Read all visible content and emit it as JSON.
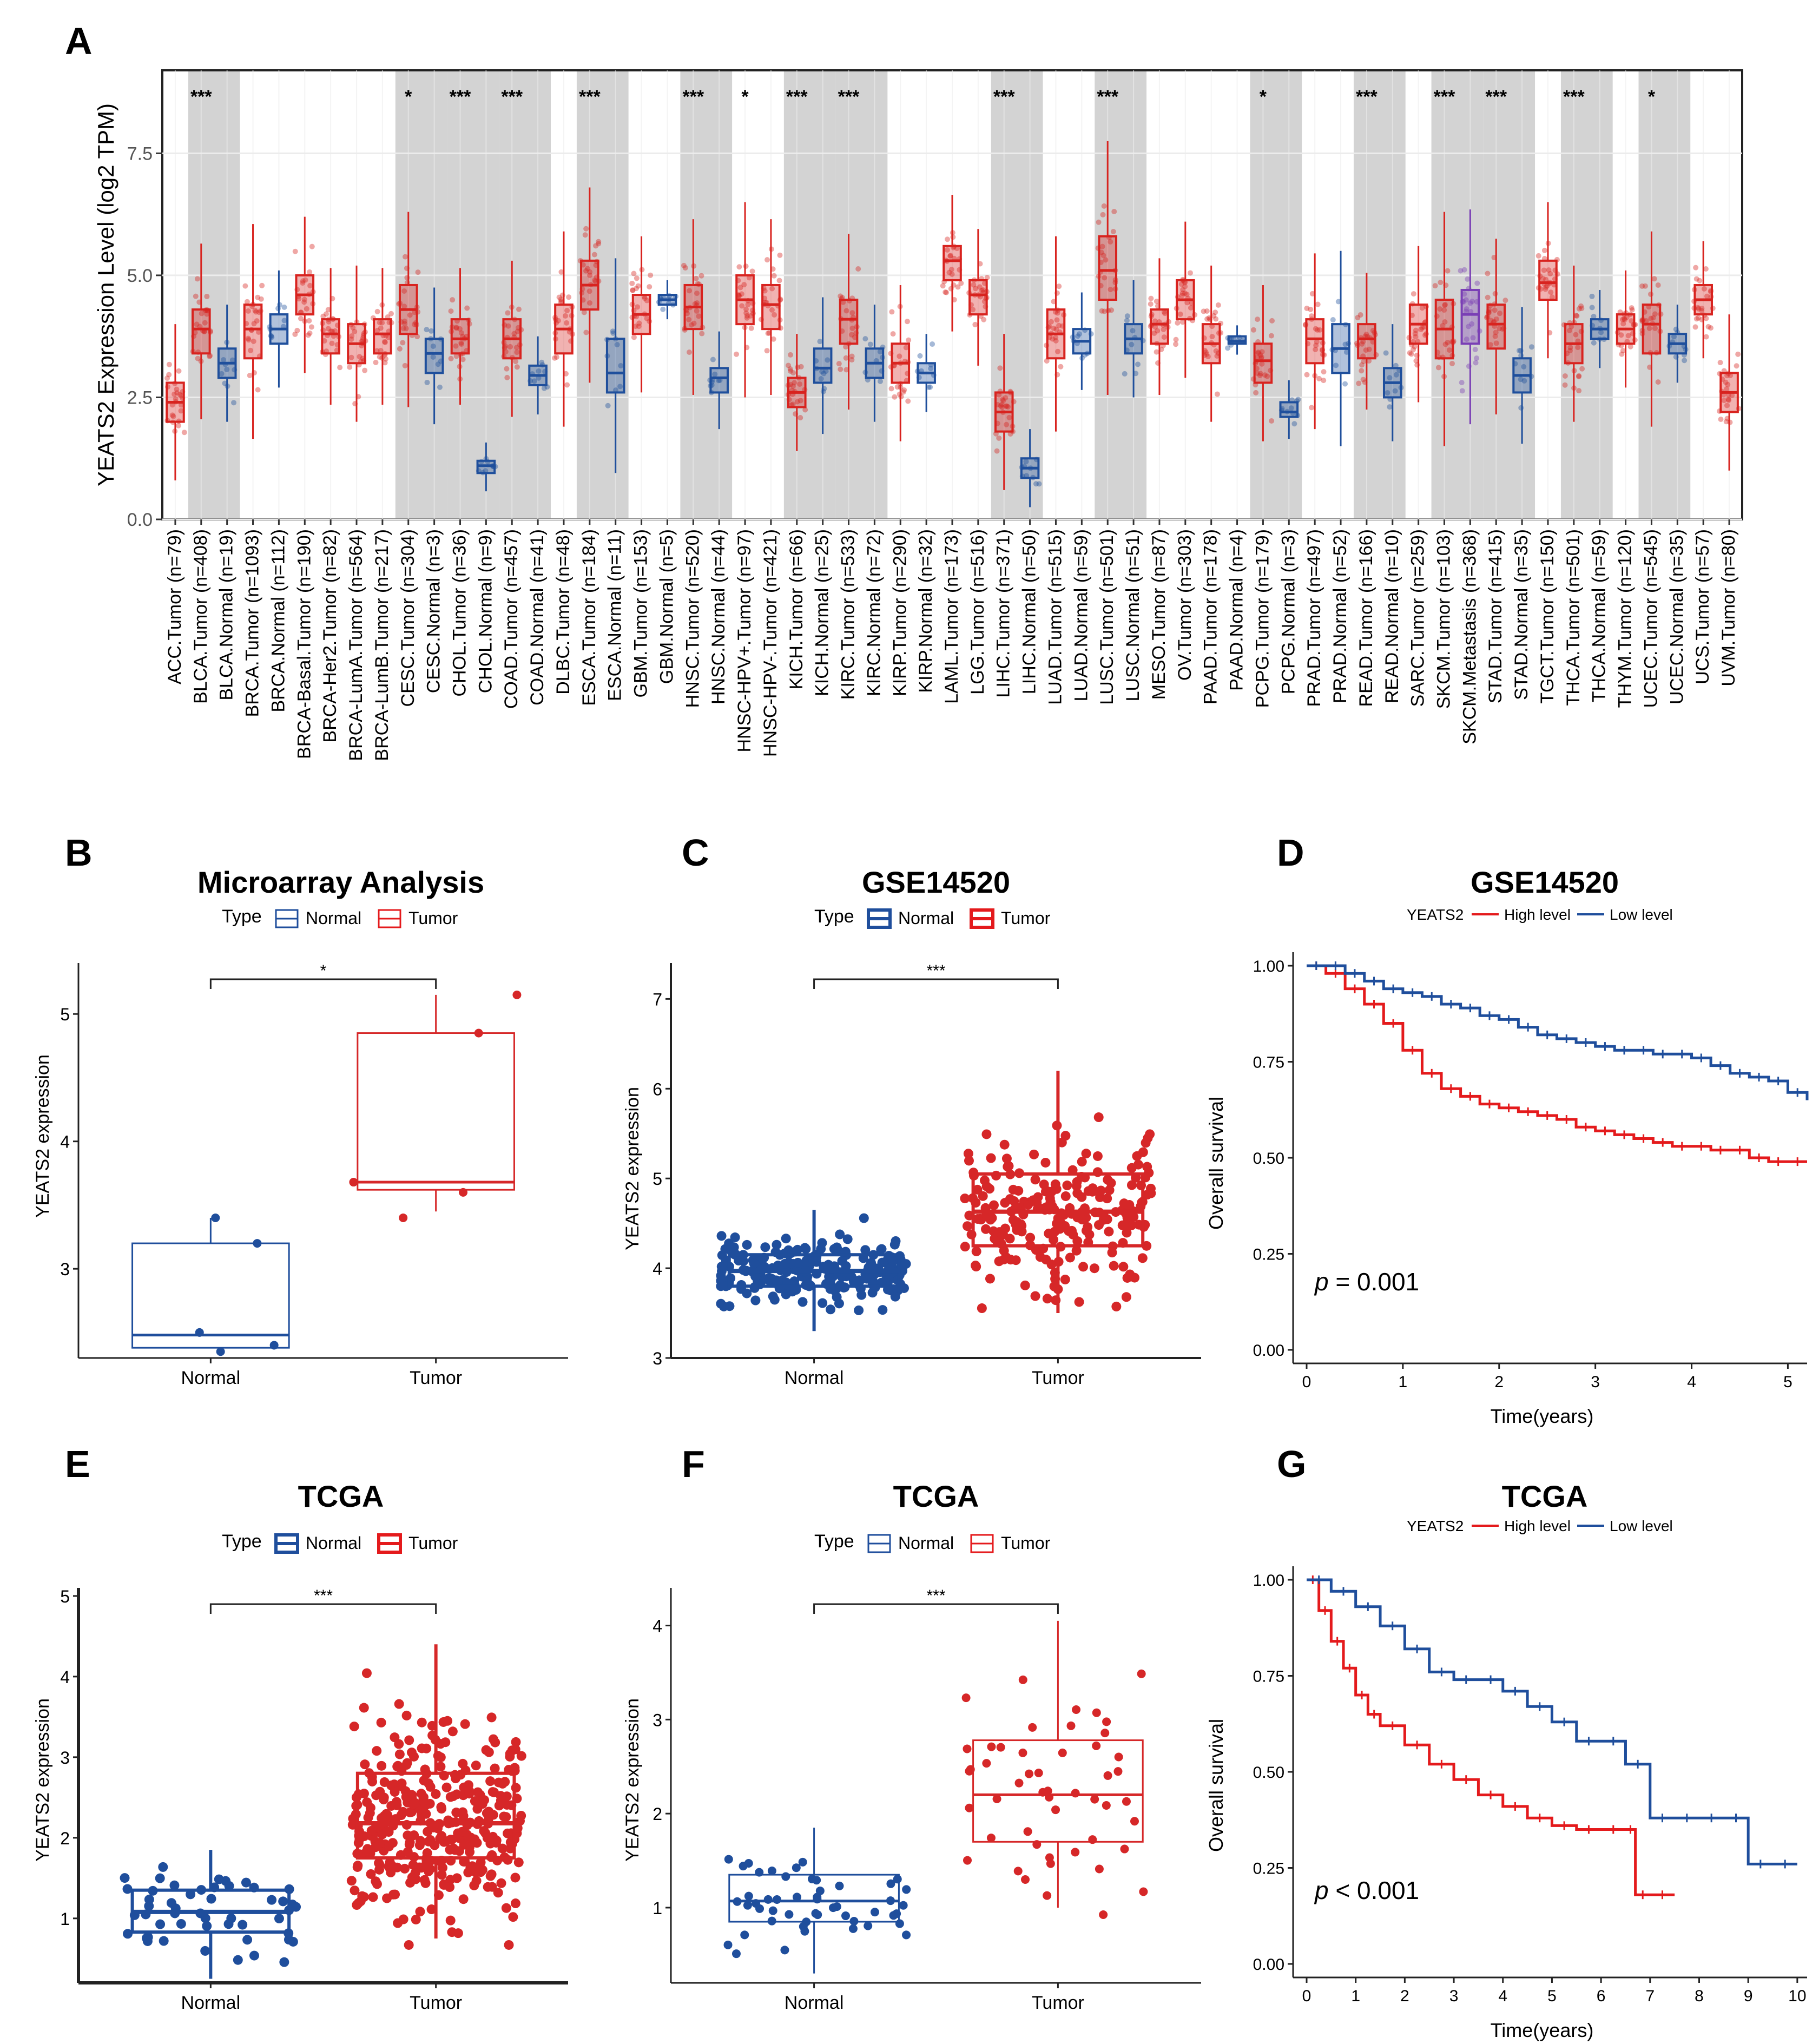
{
  "panels": {
    "A": {
      "letter": "A",
      "ylabel": "YEATS2 Expression Level (log2 TPM)",
      "yticks": [
        "0.0",
        "2.5",
        "5.0",
        "7.5"
      ]
    },
    "B": {
      "letter": "B",
      "title": "Microarray Analysis",
      "ylabel": "YEATS2 expression",
      "xticks": [
        "Normal",
        "Tumor"
      ],
      "legend_title": "Type",
      "legend_items": [
        "Normal",
        "Tumor"
      ],
      "significance": "*",
      "yticks": [
        "3",
        "4",
        "5"
      ]
    },
    "C": {
      "letter": "C",
      "title": "GSE14520",
      "ylabel": "YEATS2 expression",
      "xticks": [
        "Normal",
        "Tumor"
      ],
      "legend_title": "Type",
      "legend_items": [
        "Normal",
        "Tumor"
      ],
      "significance": "***",
      "yticks": [
        "3",
        "4",
        "5",
        "6",
        "7"
      ]
    },
    "D": {
      "letter": "D",
      "title": "GSE14520",
      "ylabel": "Overall survival",
      "xlabel": "Time(years)",
      "legend_title": "YEATS2",
      "legend_items": [
        "High level",
        "Low level"
      ],
      "pvalue_symbol": "p",
      "pvalue_text": "= 0.001",
      "yticks": [
        "0.00",
        "0.25",
        "0.50",
        "0.75",
        "1.00"
      ],
      "xticks": [
        "0",
        "1",
        "2",
        "3",
        "4",
        "5"
      ]
    },
    "E": {
      "letter": "E",
      "title": "TCGA",
      "ylabel": "YEATS2 expression",
      "xticks": [
        "Normal",
        "Tumor"
      ],
      "legend_title": "Type",
      "legend_items": [
        "Normal",
        "Tumor"
      ],
      "significance": "***",
      "yticks": [
        "1",
        "2",
        "3",
        "4",
        "5"
      ]
    },
    "F": {
      "letter": "F",
      "title": "TCGA",
      "ylabel": "YEATS2 expression",
      "xticks": [
        "Normal",
        "Tumor"
      ],
      "legend_title": "Type",
      "legend_items": [
        "Normal",
        "Tumor"
      ],
      "significance": "***",
      "yticks": [
        "1",
        "2",
        "3",
        "4"
      ]
    },
    "G": {
      "letter": "G",
      "title": "TCGA",
      "ylabel": "Overall survival",
      "xlabel": "Time(years)",
      "legend_title": "YEATS2",
      "legend_items": [
        "High level",
        "Low level"
      ],
      "pvalue_symbol": "p",
      "pvalue_text": "< 0.001",
      "yticks": [
        "0.00",
        "0.25",
        "0.50",
        "0.75",
        "1.00"
      ],
      "xticks": [
        "0",
        "1",
        "2",
        "3",
        "4",
        "5",
        "6",
        "7",
        "8",
        "9",
        "10"
      ]
    }
  },
  "chart_data": [
    {
      "id": "A",
      "type": "box",
      "ylabel": "YEATS2 Expression Level (log2 TPM)",
      "ylim": [
        0,
        9.2
      ],
      "colors": {
        "Tumor": "#d8231f",
        "Normal": "#1f4f9c",
        "Metastasis": "#7a3fb5"
      },
      "categories": [
        "ACC.Tumor (n=79)",
        "BLCA.Tumor (n=408)",
        "BLCA.Normal (n=19)",
        "BRCA.Tumor (n=1093)",
        "BRCA.Normal (n=112)",
        "BRCA-Basal.Tumor (n=190)",
        "BRCA-Her2.Tumor (n=82)",
        "BRCA-LumA.Tumor (n=564)",
        "BRCA-LumB.Tumor (n=217)",
        "CESC.Tumor (n=304)",
        "CESC.Normal (n=3)",
        "CHOL.Tumor (n=36)",
        "CHOL.Normal (n=9)",
        "COAD.Tumor (n=457)",
        "COAD.Normal (n=41)",
        "DLBC.Tumor (n=48)",
        "ESCA.Tumor (n=184)",
        "ESCA.Normal (n=11)",
        "GBM.Tumor (n=153)",
        "GBM.Normal (n=5)",
        "HNSC.Tumor (n=520)",
        "HNSC.Normal (n=44)",
        "HNSC-HPV+.Tumor (n=97)",
        "HNSC-HPV-.Tumor (n=421)",
        "KICH.Tumor (n=66)",
        "KICH.Normal (n=25)",
        "KIRC.Tumor (n=533)",
        "KIRC.Normal (n=72)",
        "KIRP.Tumor (n=290)",
        "KIRP.Normal (n=32)",
        "LAML.Tumor (n=173)",
        "LGG.Tumor (n=516)",
        "LIHC.Tumor (n=371)",
        "LIHC.Normal (n=50)",
        "LUAD.Tumor (n=515)",
        "LUAD.Normal (n=59)",
        "LUSC.Tumor (n=501)",
        "LUSC.Normal (n=51)",
        "MESO.Tumor (n=87)",
        "OV.Tumor (n=303)",
        "PAAD.Tumor (n=178)",
        "PAAD.Normal (n=4)",
        "PCPG.Tumor (n=179)",
        "PCPG.Normal (n=3)",
        "PRAD.Tumor (n=497)",
        "PRAD.Normal (n=52)",
        "READ.Tumor (n=166)",
        "READ.Normal (n=10)",
        "SARC.Tumor (n=259)",
        "SKCM.Tumor (n=103)",
        "SKCM.Metastasis (n=368)",
        "STAD.Tumor (n=415)",
        "STAD.Normal (n=35)",
        "TGCT.Tumor (n=150)",
        "THCA.Tumor (n=501)",
        "THCA.Normal (n=59)",
        "THYM.Tumor (n=120)",
        "UCEC.Tumor (n=545)",
        "UCEC.Normal (n=35)",
        "UCS.Tumor (n=57)",
        "UVM.Tumor (n=80)"
      ],
      "group": [
        "Tumor",
        "Tumor",
        "Normal",
        "Tumor",
        "Normal",
        "Tumor",
        "Tumor",
        "Tumor",
        "Tumor",
        "Tumor",
        "Normal",
        "Tumor",
        "Normal",
        "Tumor",
        "Normal",
        "Tumor",
        "Tumor",
        "Normal",
        "Tumor",
        "Normal",
        "Tumor",
        "Normal",
        "Tumor",
        "Tumor",
        "Tumor",
        "Normal",
        "Tumor",
        "Normal",
        "Tumor",
        "Normal",
        "Tumor",
        "Tumor",
        "Tumor",
        "Normal",
        "Tumor",
        "Normal",
        "Tumor",
        "Normal",
        "Tumor",
        "Tumor",
        "Tumor",
        "Normal",
        "Tumor",
        "Normal",
        "Tumor",
        "Normal",
        "Tumor",
        "Normal",
        "Tumor",
        "Tumor",
        "Metastasis",
        "Tumor",
        "Normal",
        "Tumor",
        "Tumor",
        "Normal",
        "Tumor",
        "Tumor",
        "Normal",
        "Tumor",
        "Tumor"
      ],
      "medians": [
        2.4,
        3.9,
        3.2,
        3.9,
        3.9,
        4.6,
        3.8,
        3.6,
        3.8,
        4.3,
        3.4,
        3.7,
        1.1,
        3.7,
        2.95,
        3.9,
        4.8,
        3.0,
        4.2,
        4.5,
        4.35,
        2.9,
        4.5,
        4.4,
        2.6,
        3.1,
        4.1,
        3.2,
        3.2,
        3.0,
        5.3,
        4.6,
        2.2,
        1.05,
        3.8,
        3.65,
        5.1,
        3.7,
        4.0,
        4.5,
        3.6,
        3.65,
        3.25,
        2.2,
        3.7,
        3.5,
        3.7,
        2.8,
        4.0,
        3.9,
        4.2,
        4.0,
        2.95,
        4.85,
        3.6,
        3.9,
        3.9,
        4.0,
        3.6,
        4.5,
        2.6
      ],
      "q1": [
        2.0,
        3.4,
        2.9,
        3.3,
        3.6,
        4.2,
        3.4,
        3.2,
        3.4,
        3.8,
        3.0,
        3.4,
        0.95,
        3.3,
        2.75,
        3.4,
        4.3,
        2.6,
        3.8,
        4.4,
        3.9,
        2.6,
        4.0,
        3.9,
        2.3,
        2.8,
        3.6,
        2.9,
        2.8,
        2.8,
        4.9,
        4.2,
        1.8,
        0.85,
        3.3,
        3.4,
        4.5,
        3.4,
        3.6,
        4.1,
        3.2,
        3.6,
        2.8,
        2.1,
        3.2,
        3.0,
        3.3,
        2.5,
        3.6,
        3.3,
        3.6,
        3.5,
        2.6,
        4.5,
        3.2,
        3.7,
        3.6,
        3.4,
        3.4,
        4.2,
        2.2
      ],
      "q3": [
        2.8,
        4.3,
        3.5,
        4.4,
        4.2,
        5.0,
        4.1,
        4.0,
        4.1,
        4.8,
        3.7,
        4.1,
        1.2,
        4.1,
        3.15,
        4.4,
        5.3,
        3.7,
        4.6,
        4.6,
        4.8,
        3.1,
        5.0,
        4.8,
        2.9,
        3.5,
        4.5,
        3.5,
        3.6,
        3.2,
        5.6,
        4.9,
        2.6,
        1.25,
        4.3,
        3.9,
        5.8,
        4.0,
        4.3,
        4.9,
        4.0,
        3.75,
        3.6,
        2.4,
        4.1,
        4.0,
        4.0,
        3.1,
        4.4,
        4.5,
        4.7,
        4.4,
        3.3,
        5.3,
        4.0,
        4.1,
        4.2,
        4.4,
        3.8,
        4.8,
        3.0
      ],
      "significance": [
        "",
        "***",
        "",
        "",
        "",
        "",
        "",
        "",
        "",
        "*",
        "",
        "***",
        "",
        "***",
        "",
        "",
        "***",
        "",
        "",
        "",
        "***",
        "",
        "*",
        "",
        "***",
        "",
        "***",
        "",
        "",
        "",
        "",
        "",
        "***",
        "",
        "",
        "",
        "***",
        "",
        "",
        "",
        "",
        "",
        "*",
        "",
        "",
        "",
        "***",
        "",
        "",
        "***",
        "",
        "***",
        "",
        "",
        "***",
        "",
        "",
        "*",
        "",
        "",
        ""
      ]
    },
    {
      "id": "B",
      "type": "box",
      "title": "Microarray Analysis",
      "xlabel": "",
      "ylabel": "YEATS2 expression",
      "categories": [
        "Normal",
        "Tumor"
      ],
      "ylim": [
        2.3,
        5.4
      ],
      "boxes": [
        {
          "q1": 2.38,
          "median": 2.48,
          "q3": 3.2,
          "whisker_low": 2.38,
          "whisker_high": 3.4
        },
        {
          "q1": 3.62,
          "median": 3.68,
          "q3": 4.85,
          "whisker_low": 3.45,
          "whisker_high": 5.15
        }
      ],
      "points": [
        [
          2.35,
          2.4,
          2.5,
          3.2,
          3.4
        ],
        [
          3.4,
          3.6,
          3.68,
          4.85,
          5.15
        ]
      ]
    },
    {
      "id": "C",
      "type": "box",
      "title": "GSE14520",
      "xlabel": "",
      "ylabel": "YEATS2 expression",
      "categories": [
        "Normal",
        "Tumor"
      ],
      "ylim": [
        3,
        7.4
      ],
      "boxes": [
        {
          "q1": 3.8,
          "median": 3.97,
          "q3": 4.15,
          "whisker_low": 3.3,
          "whisker_high": 4.65
        },
        {
          "q1": 4.25,
          "median": 4.63,
          "q3": 5.05,
          "whisker_low": 3.5,
          "whisker_high": 6.2
        }
      ]
    },
    {
      "id": "D",
      "type": "line",
      "title": "GSE14520",
      "xlabel": "Time(years)",
      "ylabel": "Overall survival",
      "xlim": [
        0,
        5.2
      ],
      "ylim": [
        0,
        1
      ],
      "series": [
        {
          "name": "High level",
          "color": "#e41a1c",
          "x": [
            0,
            0.2,
            0.4,
            0.6,
            0.8,
            1.0,
            1.2,
            1.4,
            1.6,
            1.8,
            2.0,
            2.2,
            2.4,
            2.6,
            2.8,
            3.0,
            3.2,
            3.4,
            3.6,
            3.8,
            4.0,
            4.2,
            4.4,
            4.6,
            4.8,
            5.0,
            5.2
          ],
          "y": [
            1.0,
            0.98,
            0.94,
            0.9,
            0.85,
            0.78,
            0.72,
            0.68,
            0.66,
            0.64,
            0.63,
            0.62,
            0.61,
            0.6,
            0.58,
            0.57,
            0.56,
            0.55,
            0.54,
            0.53,
            0.53,
            0.52,
            0.52,
            0.5,
            0.49,
            0.49,
            0.49
          ]
        },
        {
          "name": "Low level",
          "color": "#1f4e9c",
          "x": [
            0,
            0.2,
            0.4,
            0.6,
            0.8,
            1.0,
            1.2,
            1.4,
            1.6,
            1.8,
            2.0,
            2.2,
            2.4,
            2.6,
            2.8,
            3.0,
            3.2,
            3.4,
            3.6,
            3.8,
            4.0,
            4.2,
            4.4,
            4.6,
            4.8,
            5.0,
            5.2
          ],
          "y": [
            1.0,
            1.0,
            0.98,
            0.96,
            0.94,
            0.93,
            0.92,
            0.9,
            0.89,
            0.87,
            0.86,
            0.84,
            0.82,
            0.81,
            0.8,
            0.79,
            0.78,
            0.78,
            0.77,
            0.77,
            0.76,
            0.74,
            0.72,
            0.71,
            0.7,
            0.67,
            0.65
          ]
        }
      ]
    },
    {
      "id": "E",
      "type": "box",
      "title": "TCGA",
      "xlabel": "",
      "ylabel": "YEATS2 expression",
      "categories": [
        "Normal",
        "Tumor"
      ],
      "ylim": [
        0.2,
        5.1
      ],
      "boxes": [
        {
          "q1": 0.83,
          "median": 1.08,
          "q3": 1.35,
          "whisker_low": 0.25,
          "whisker_high": 1.85
        },
        {
          "q1": 1.75,
          "median": 2.18,
          "q3": 2.8,
          "whisker_low": 0.75,
          "whisker_high": 4.4
        }
      ]
    },
    {
      "id": "F",
      "type": "box",
      "title": "TCGA",
      "xlabel": "",
      "ylabel": "YEATS2 expression",
      "categories": [
        "Normal",
        "Tumor"
      ],
      "ylim": [
        0.2,
        4.4
      ],
      "boxes": [
        {
          "q1": 0.85,
          "median": 1.07,
          "q3": 1.35,
          "whisker_low": 0.3,
          "whisker_high": 1.85
        },
        {
          "q1": 1.7,
          "median": 2.2,
          "q3": 2.78,
          "whisker_low": 1.0,
          "whisker_high": 4.05
        }
      ]
    },
    {
      "id": "G",
      "type": "line",
      "title": "TCGA",
      "xlabel": "Time(years)",
      "ylabel": "Overall survival",
      "xlim": [
        0,
        10.2
      ],
      "ylim": [
        0,
        1
      ],
      "series": [
        {
          "name": "High level",
          "color": "#e41a1c",
          "x": [
            0,
            0.25,
            0.5,
            0.75,
            1.0,
            1.25,
            1.5,
            2.0,
            2.5,
            3.0,
            3.5,
            4.0,
            4.5,
            5.0,
            5.5,
            6.0,
            6.5,
            6.7,
            7.0,
            7.5
          ],
          "y": [
            1.0,
            0.92,
            0.84,
            0.77,
            0.7,
            0.65,
            0.62,
            0.57,
            0.52,
            0.48,
            0.44,
            0.41,
            0.38,
            0.36,
            0.35,
            0.35,
            0.35,
            0.18,
            0.18,
            0.18
          ]
        },
        {
          "name": "Low level",
          "color": "#1f4e9c",
          "x": [
            0,
            0.5,
            1.0,
            1.5,
            2.0,
            2.5,
            3.0,
            3.5,
            4.0,
            4.5,
            5.0,
            5.5,
            6.0,
            6.5,
            7.0,
            7.5,
            8.0,
            8.5,
            9.0,
            9.5,
            10.0
          ],
          "y": [
            1.0,
            0.97,
            0.93,
            0.88,
            0.82,
            0.76,
            0.74,
            0.74,
            0.71,
            0.67,
            0.63,
            0.58,
            0.58,
            0.52,
            0.38,
            0.38,
            0.38,
            0.38,
            0.26,
            0.26,
            0.26
          ]
        }
      ]
    }
  ]
}
